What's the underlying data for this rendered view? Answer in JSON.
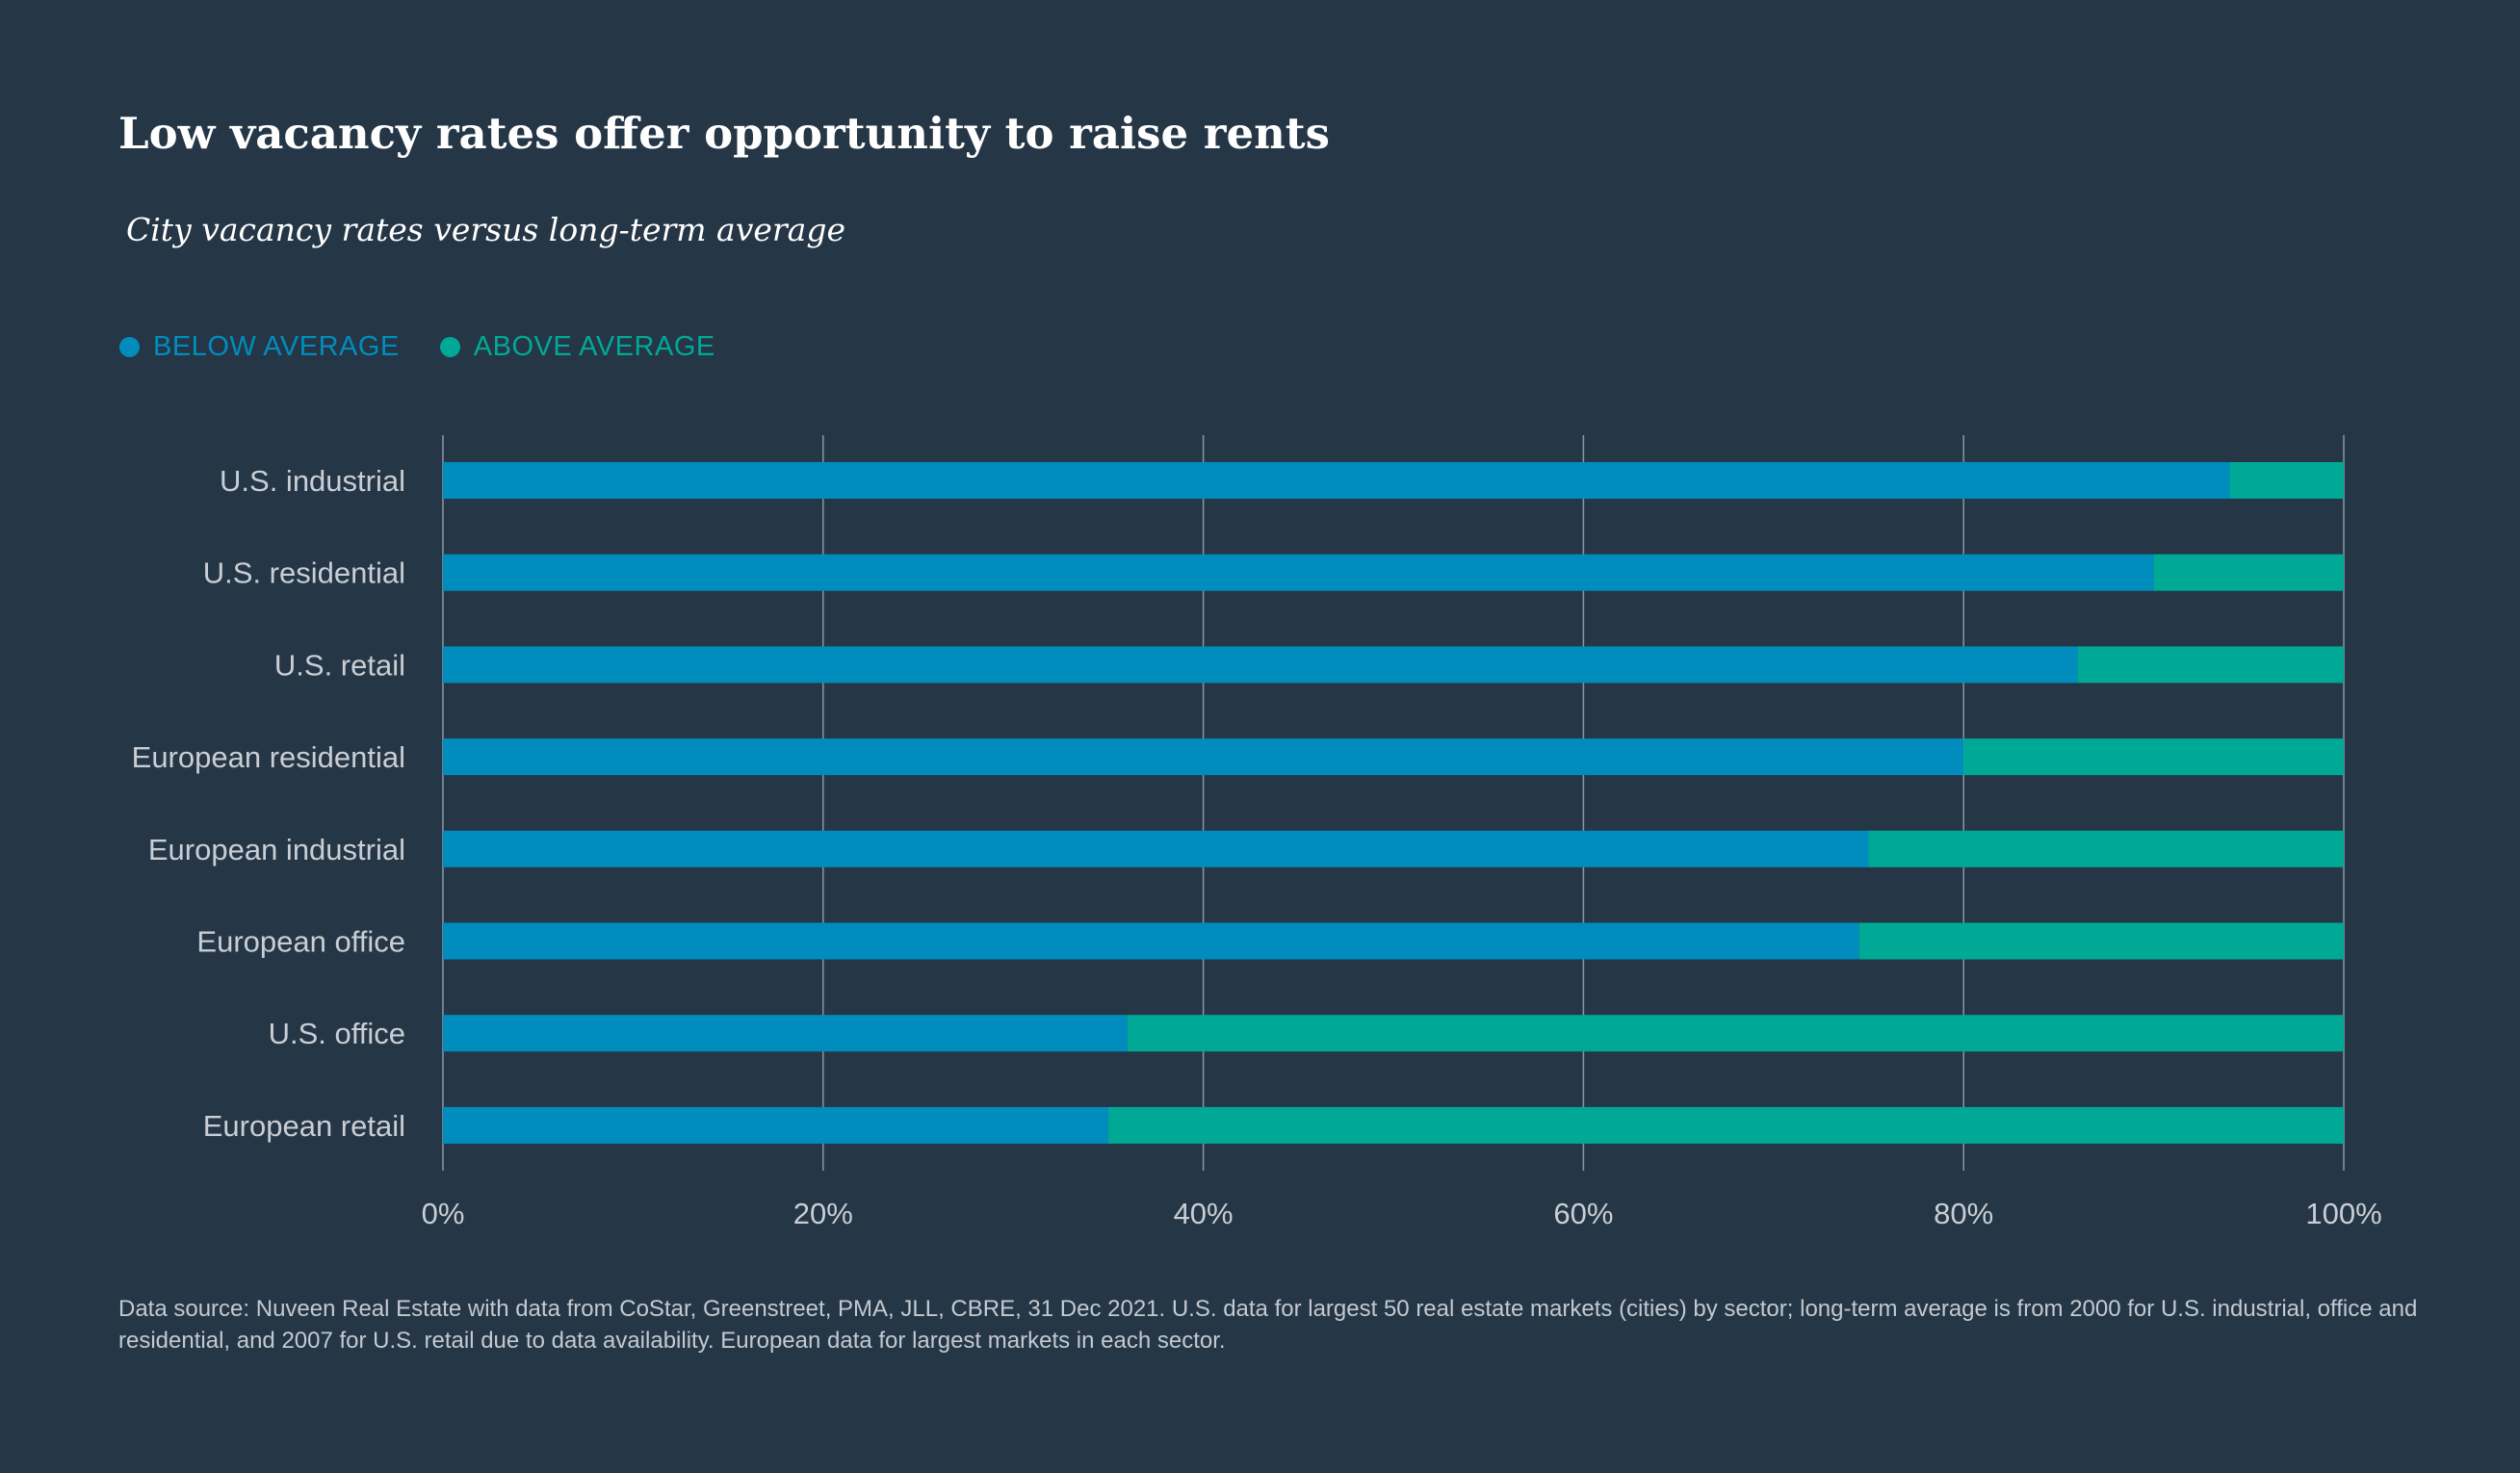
{
  "colors": {
    "background": "#253646",
    "below": "#008dbe",
    "above": "#00a996",
    "grid": "#8a96a3",
    "label": "#c9ced4"
  },
  "header": {
    "title": "Low vacancy rates offer opportunity to raise rents",
    "subtitle": "City vacancy rates versus long-term average"
  },
  "legend": {
    "below_label": "BELOW AVERAGE",
    "above_label": "ABOVE AVERAGE"
  },
  "chart_data": {
    "type": "bar",
    "orientation": "horizontal",
    "stacked": true,
    "categories": [
      "U.S. industrial",
      "U.S. residential",
      "U.S. retail",
      "European residential",
      "European industrial",
      "European office",
      "U.S. office",
      "European retail"
    ],
    "series": [
      {
        "name": "BELOW AVERAGE",
        "values": [
          94,
          90,
          86,
          80,
          75,
          74.5,
          36,
          35
        ]
      },
      {
        "name": "ABOVE AVERAGE",
        "values": [
          6,
          10,
          14,
          20,
          25,
          25.5,
          64,
          65
        ]
      }
    ],
    "xlim": [
      0,
      100
    ],
    "xticks": [
      "0%",
      "20%",
      "40%",
      "60%",
      "80%",
      "100%"
    ],
    "xtick_values": [
      0,
      20,
      40,
      60,
      80,
      100
    ],
    "grid": true,
    "legend_position": "top-left"
  },
  "footnote": "Data source: Nuveen Real Estate with data from CoStar, Greenstreet, PMA, JLL, CBRE, 31 Dec 2021. U.S. data for largest 50 real estate markets (cities) by sector; long-term average is from 2000 for U.S. industrial, office and residential, and 2007 for U.S. retail due to data availability. European data for largest markets in each sector."
}
